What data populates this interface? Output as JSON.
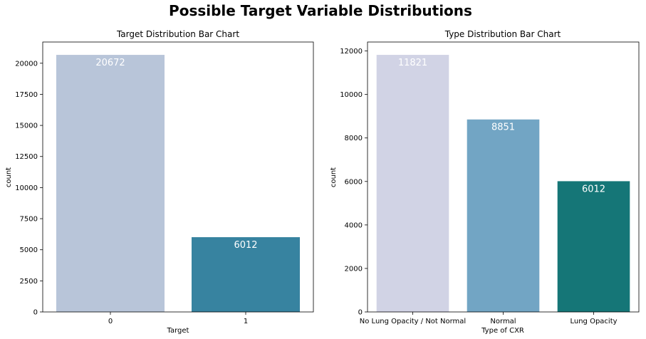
{
  "suptitle": "Possible Target Variable Distributions",
  "chart_data": [
    {
      "type": "bar",
      "title": "Target Distribution Bar Chart",
      "xlabel": "Target",
      "ylabel": "count",
      "categories": [
        "0",
        "1"
      ],
      "values": [
        20672,
        6012
      ],
      "colors": [
        "#b8c5d9",
        "#3783a0"
      ],
      "ylim": [
        0,
        21706
      ],
      "yticks": [
        0,
        2500,
        5000,
        7500,
        10000,
        12500,
        15000,
        17500,
        20000
      ],
      "data_labels": [
        "20672",
        "6012"
      ],
      "grid": false
    },
    {
      "type": "bar",
      "title": "Type Distribution Bar Chart",
      "xlabel": "Type of CXR",
      "ylabel": "count",
      "categories": [
        "No Lung Opacity / Not Normal",
        "Normal",
        "Lung Opacity"
      ],
      "values": [
        11821,
        8851,
        6012
      ],
      "colors": [
        "#d1d3e5",
        "#72a5c4",
        "#157677"
      ],
      "ylim": [
        0,
        12412
      ],
      "yticks": [
        0,
        2000,
        4000,
        6000,
        8000,
        10000,
        12000
      ],
      "data_labels": [
        "11821",
        "8851",
        "6012"
      ],
      "grid": false
    }
  ]
}
